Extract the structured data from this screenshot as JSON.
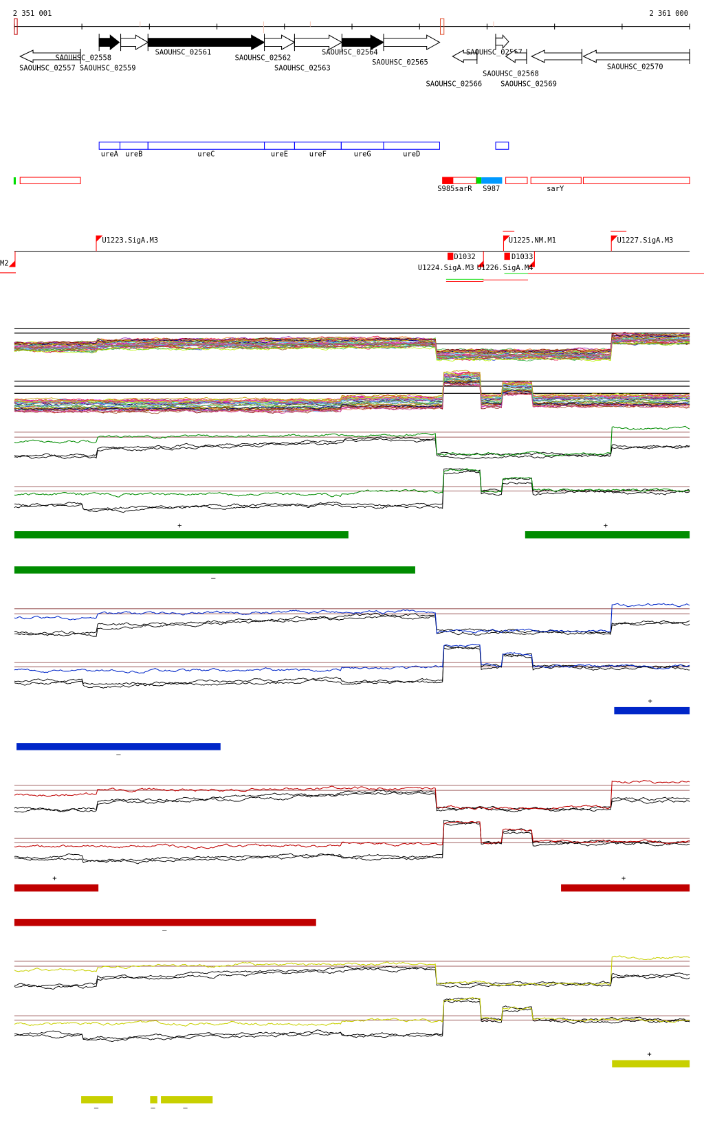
{
  "coordinates": {
    "start": "2 351 001",
    "end": "2 361 000"
  },
  "colors": {
    "green": "#008c00",
    "blue": "#0026c8",
    "red": "#c00000",
    "yellow": "#c8d000",
    "gene_outline": "#0000ff",
    "feature_outline": "#ff0000",
    "threshold": "#a06060"
  },
  "genes": [
    {
      "label": "SAOUHSC_02557",
      "strand": "-",
      "fill": "white"
    },
    {
      "label": "SAOUHSC_02558",
      "strand": "+",
      "fill": "black"
    },
    {
      "label": "SAOUHSC_02559",
      "strand": "+",
      "fill": "white"
    },
    {
      "label": "SAOUHSC_02561",
      "strand": "+",
      "fill": "black"
    },
    {
      "label": "SAOUHSC_02562",
      "strand": "+",
      "fill": "white"
    },
    {
      "label": "SAOUHSC_02563",
      "strand": "+",
      "fill": "white"
    },
    {
      "label": "SAOUHSC_02564",
      "strand": "+",
      "fill": "black"
    },
    {
      "label": "SAOUHSC_02565",
      "strand": "+",
      "fill": "white"
    },
    {
      "label": "SAOUHSC_02566",
      "strand": "-",
      "fill": "white"
    },
    {
      "label": "SAOUHSC_02567",
      "strand": "+",
      "fill": "white"
    },
    {
      "label": "SAOUHSC_02568",
      "strand": "-",
      "fill": "white"
    },
    {
      "label": "SAOUHSC_02569",
      "strand": "-",
      "fill": "white"
    },
    {
      "label": "SAOUHSC_02570",
      "strand": "-",
      "fill": "white"
    }
  ],
  "gene_names": [
    "ureA",
    "ureB",
    "ureC",
    "ureE",
    "ureF",
    "ureG",
    "ureD"
  ],
  "features": [
    "S985sarR",
    "S987",
    "sarY"
  ],
  "promoters": [
    "U1223.SigA.M3",
    "U1225.NM.M1",
    "U1227.SigA.M3",
    "M2",
    "D1032",
    "D1033",
    "U1224.SigA.M3",
    "U1226.SigA.M4"
  ],
  "segment_tracks": {
    "green": {
      "plus": "+",
      "minus": "–"
    },
    "blue": {
      "plus": "+",
      "minus": "–"
    },
    "red": {
      "plus": "+",
      "minus": "–"
    },
    "yellow": {
      "plus": "+",
      "minus": "–"
    }
  },
  "strand_labels": {
    "plus": "+",
    "minus": "–"
  }
}
